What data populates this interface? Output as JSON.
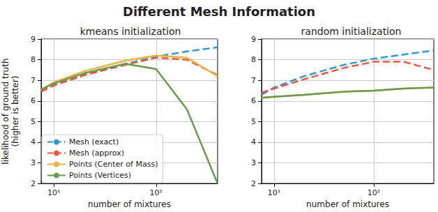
{
  "title": "Different Mesh Information",
  "chart_data": [
    {
      "type": "line",
      "title": "kmeans initialization",
      "xlabel": "number of mixtures",
      "ylabel": "likelihood of ground truth\n(higher is better)",
      "log": "x",
      "grid": true,
      "legend": "lower left",
      "x": [
        7.5,
        10,
        20,
        50,
        100,
        200,
        400
      ],
      "xlim": [
        7.5,
        400
      ],
      "xticks": [
        {
          "value": 10,
          "label": "10¹"
        },
        {
          "value": 100,
          "label": "10²"
        }
      ],
      "ylim": [
        2,
        9
      ],
      "yticks": [
        2,
        3,
        4,
        5,
        6,
        7,
        8,
        9
      ],
      "series": [
        {
          "name": "Mesh (exact)",
          "color": "#2b9bd8",
          "line_style": "dashed",
          "values": [
            6.5,
            6.8,
            7.3,
            7.8,
            8.15,
            8.4,
            8.6
          ]
        },
        {
          "name": "Mesh (approx)",
          "color": "#f2553b",
          "line_style": "dashed",
          "values": [
            6.45,
            6.75,
            7.25,
            7.75,
            8.1,
            8.0,
            7.25
          ]
        },
        {
          "name": "Points (Center of Mass)",
          "color": "#e8b33f",
          "line_style": "solid",
          "values": [
            6.55,
            6.9,
            7.45,
            7.95,
            8.2,
            8.1,
            7.2
          ]
        },
        {
          "name": "Points (Vertices)",
          "color": "#6b9a4b",
          "line_style": "solid",
          "values": [
            6.55,
            6.85,
            7.35,
            7.8,
            7.55,
            5.6,
            2.0
          ]
        }
      ]
    },
    {
      "type": "line",
      "title": "random initialization",
      "xlabel": "number of mixtures",
      "log": "x",
      "grid": true,
      "x": [
        7.5,
        10,
        20,
        50,
        100,
        200,
        400
      ],
      "xlim": [
        7.5,
        400
      ],
      "xticks": [
        {
          "value": 10,
          "label": "10¹"
        },
        {
          "value": 100,
          "label": "10²"
        }
      ],
      "ylim": [
        2,
        9
      ],
      "yticks": [
        2,
        3,
        4,
        5,
        6,
        7,
        8,
        9
      ],
      "series": [
        {
          "name": "Mesh (exact)",
          "color": "#2b9bd8",
          "line_style": "dashed",
          "values": [
            6.3,
            6.65,
            7.2,
            7.75,
            8.05,
            8.25,
            8.45
          ]
        },
        {
          "name": "Mesh (approx)",
          "color": "#f2553b",
          "line_style": "dashed",
          "values": [
            6.4,
            6.6,
            7.05,
            7.6,
            7.9,
            7.9,
            7.5
          ]
        },
        {
          "name": "Points (Center of Mass)",
          "color": "#e8b33f",
          "line_style": "solid",
          "values": [
            6.15,
            6.2,
            6.3,
            6.45,
            6.5,
            6.6,
            6.65
          ]
        },
        {
          "name": "Points (Vertices)",
          "color": "#6b9a4b",
          "line_style": "solid",
          "values": [
            6.15,
            6.2,
            6.3,
            6.45,
            6.5,
            6.6,
            6.65
          ]
        }
      ]
    }
  ]
}
